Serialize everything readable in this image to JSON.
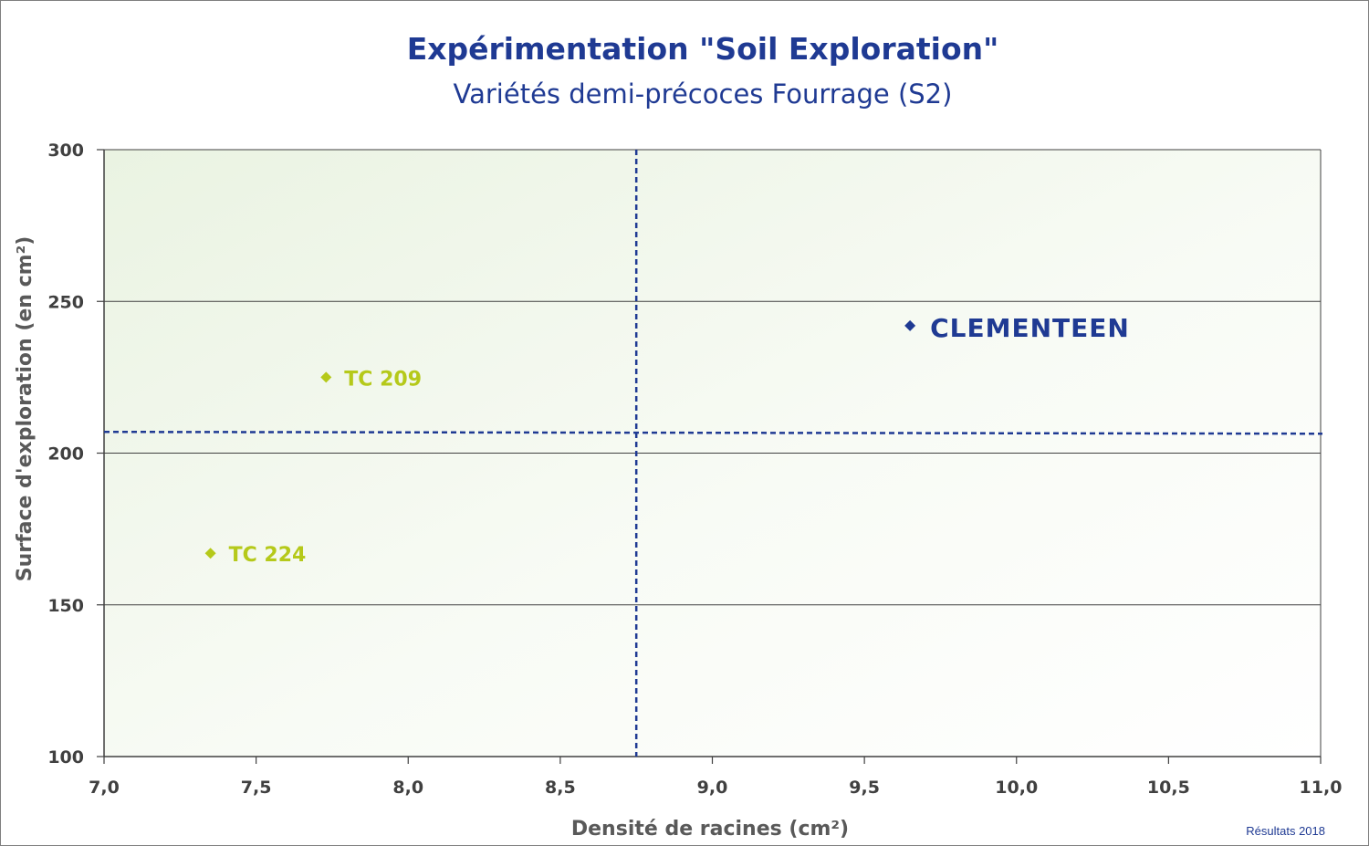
{
  "chart_data": {
    "type": "scatter",
    "title": "Expérimentation \"Soil Exploration\"",
    "subtitle": "Variétés demi-précoces Fourrage (S2)",
    "xlabel": "Densité de racines (cm²)",
    "ylabel": "Surface d'exploration (en cm²)",
    "xlim": [
      7.0,
      11.0
    ],
    "ylim": [
      100,
      300
    ],
    "x_ticks": [
      "7,0",
      "7,5",
      "8,0",
      "8,5",
      "9,0",
      "9,5",
      "10,0",
      "10,5",
      "11,0"
    ],
    "x_tick_values": [
      7.0,
      7.5,
      8.0,
      8.5,
      9.0,
      9.5,
      10.0,
      10.5,
      11.0
    ],
    "y_ticks": [
      "100",
      "150",
      "200",
      "250",
      "300"
    ],
    "y_tick_values": [
      100,
      150,
      200,
      250,
      300
    ],
    "grid": "horizontal",
    "points": [
      {
        "label": "CLEMENTEEN",
        "x": 9.65,
        "y": 242,
        "color": "#1f3a93"
      },
      {
        "label": "TC 209",
        "x": 7.73,
        "y": 225,
        "color": "#b5c91a"
      },
      {
        "label": "TC 224",
        "x": 7.35,
        "y": 167,
        "color": "#b5c91a"
      }
    ],
    "reference_lines": {
      "vertical_x": 8.75,
      "horizontal_y": 207,
      "color": "#1f3a93"
    },
    "footnote": "Résultats 2018"
  }
}
